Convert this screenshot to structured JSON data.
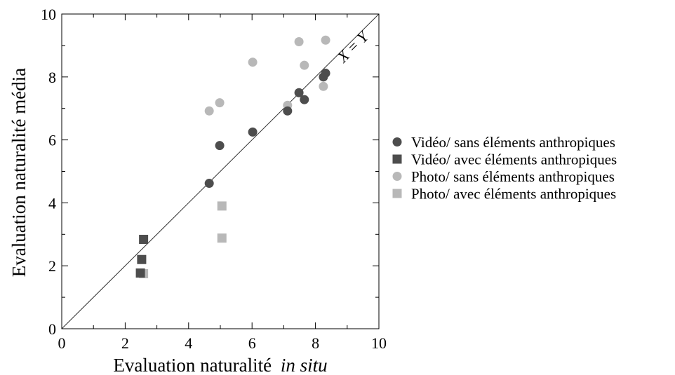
{
  "chart_data": {
    "type": "scatter",
    "xlabel": "Evaluation naturalité",
    "xlabel_italic": "in situ",
    "ylabel": "Evaluation naturalité média",
    "xlim": [
      0,
      10
    ],
    "ylim": [
      0,
      10
    ],
    "xticks": [
      "0",
      "2",
      "4",
      "6",
      "8",
      "10"
    ],
    "yticks": [
      "0",
      "2",
      "4",
      "6",
      "8",
      "10"
    ],
    "grid": false,
    "legend_position": "right",
    "reference_line": {
      "label": "X = Y",
      "slope": 1,
      "intercept": 0
    },
    "colors": {
      "dark": "#4d4d4d",
      "light": "#b8b8b8",
      "axis": "#000000"
    },
    "series": [
      {
        "name": "Vidéo/ sans éléments anthropiques",
        "marker": "circle",
        "color": "#4d4d4d",
        "points": [
          [
            4.65,
            4.62
          ],
          [
            4.98,
            5.82
          ],
          [
            6.02,
            6.25
          ],
          [
            7.12,
            6.92
          ],
          [
            7.48,
            7.5
          ],
          [
            7.65,
            7.28
          ],
          [
            8.25,
            8.0
          ],
          [
            8.32,
            8.12
          ]
        ]
      },
      {
        "name": "Vidéo/ avec éléments anthropiques",
        "marker": "square",
        "color": "#4d4d4d",
        "points": [
          [
            2.58,
            2.84
          ],
          [
            2.52,
            2.2
          ],
          [
            2.48,
            1.77
          ]
        ]
      },
      {
        "name": "Photo/ sans éléments anthropiques",
        "marker": "circle",
        "color": "#b8b8b8",
        "points": [
          [
            4.65,
            6.92
          ],
          [
            4.98,
            7.18
          ],
          [
            6.02,
            8.47
          ],
          [
            7.12,
            7.1
          ],
          [
            7.48,
            9.12
          ],
          [
            7.65,
            8.37
          ],
          [
            8.25,
            7.7
          ],
          [
            8.32,
            9.17
          ]
        ]
      },
      {
        "name": "Photo/ avec éléments anthropiques",
        "marker": "square",
        "color": "#b8b8b8",
        "points": [
          [
            2.58,
            1.75
          ],
          [
            5.05,
            3.9
          ],
          [
            5.05,
            2.88
          ]
        ]
      }
    ]
  }
}
